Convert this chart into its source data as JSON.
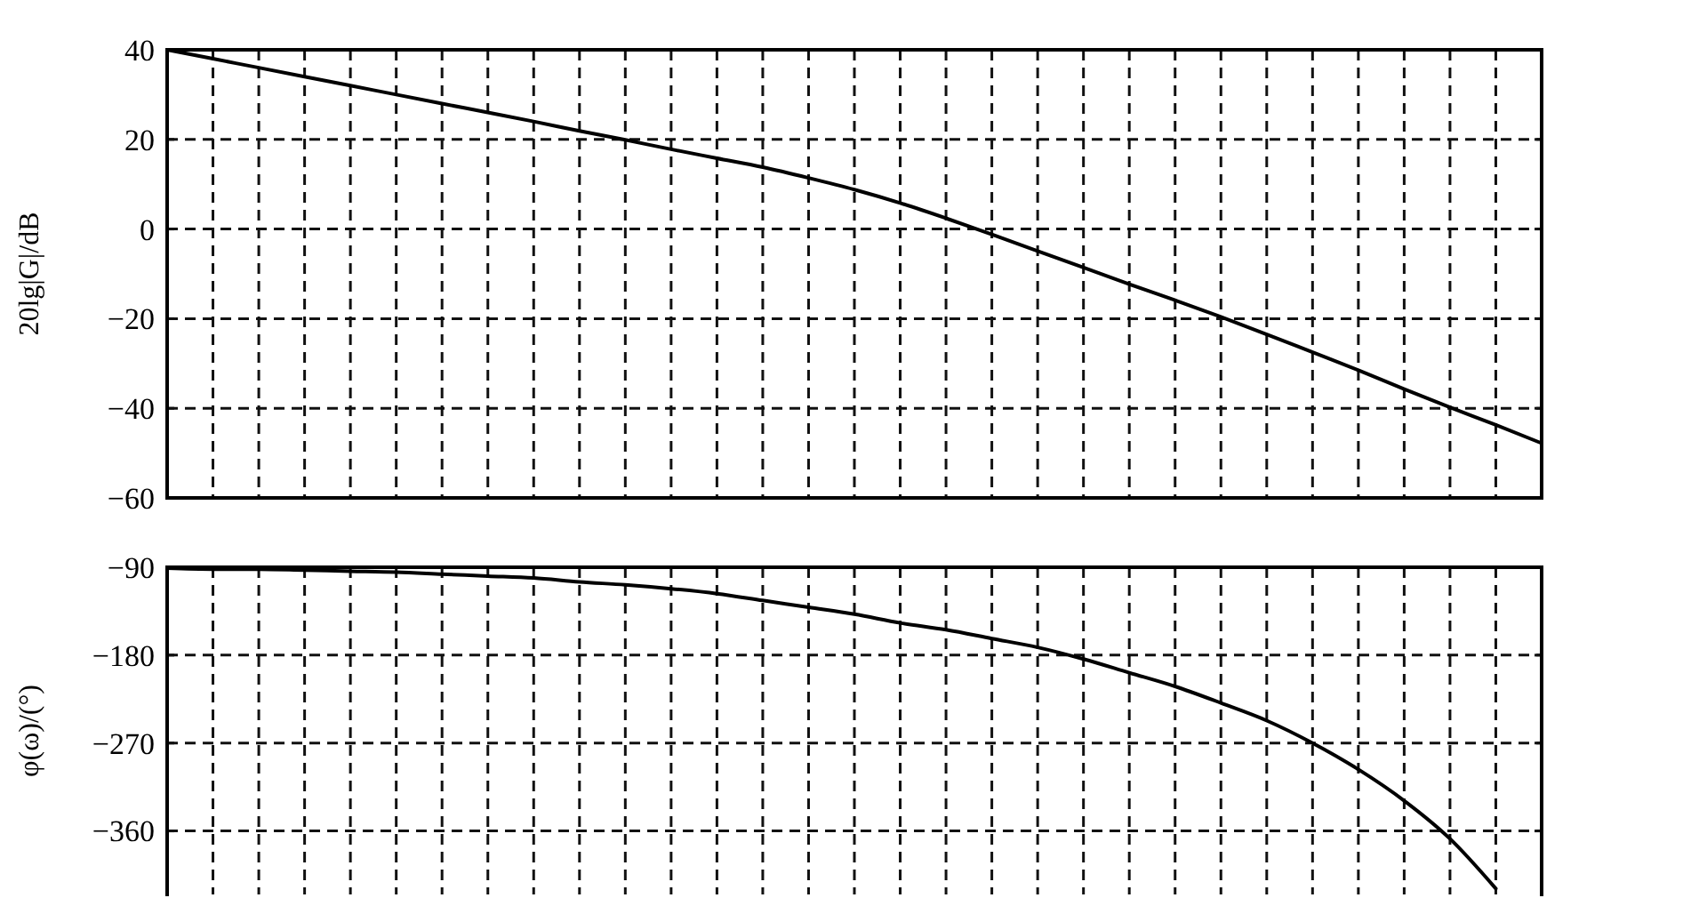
{
  "chart_data": [
    {
      "type": "line",
      "ylabel": "20lg|G|/dB",
      "categories": [
        null,
        null,
        null,
        null,
        null,
        null,
        null,
        null,
        null,
        null,
        null,
        null,
        null,
        null,
        null,
        null,
        null,
        null,
        null,
        null,
        null,
        null,
        null,
        null,
        null,
        null,
        null,
        null,
        null,
        null,
        null
      ],
      "series": [
        {
          "color": "#000000",
          "values": [
            40,
            38,
            36,
            34,
            32,
            30,
            28,
            26,
            24,
            21.9,
            19.9,
            17.8,
            15.8,
            13.8,
            11.4,
            8.8,
            5.8,
            2.4,
            -1.2,
            -4.9,
            -8.6,
            -12.3,
            -15.9,
            -19.6,
            -23.5,
            -27.5,
            -31.5,
            -35.7,
            -39.8,
            -43.7,
            -47.8
          ]
        }
      ],
      "ylim": [
        -60,
        40
      ],
      "yticks": [
        -60,
        -40,
        -20,
        0,
        20,
        40
      ],
      "grid": true
    },
    {
      "type": "line",
      "ylabel": "φ(ω)/(°)",
      "categories": [
        null,
        null,
        null,
        null,
        null,
        null,
        null,
        null,
        null,
        null,
        null,
        null,
        null,
        null,
        null,
        null,
        null,
        null,
        null,
        null,
        null,
        null,
        null,
        null,
        null,
        null,
        null,
        null,
        null,
        null,
        null
      ],
      "series": [
        {
          "color": "#000000",
          "values": [
            -91,
            -92,
            -92,
            -93,
            -94,
            -95,
            -97,
            -99,
            -101,
            -105,
            -108,
            -112,
            -117,
            -124,
            -131,
            -138,
            -147,
            -154,
            -163,
            -172,
            -184,
            -198,
            -212,
            -229,
            -247,
            -270,
            -297,
            -329,
            -368,
            -419,
            null
          ]
        }
      ],
      "ylim": [
        -425,
        -90
      ],
      "yticks": [
        -360,
        -270,
        -180,
        -90
      ],
      "grid": true
    }
  ]
}
